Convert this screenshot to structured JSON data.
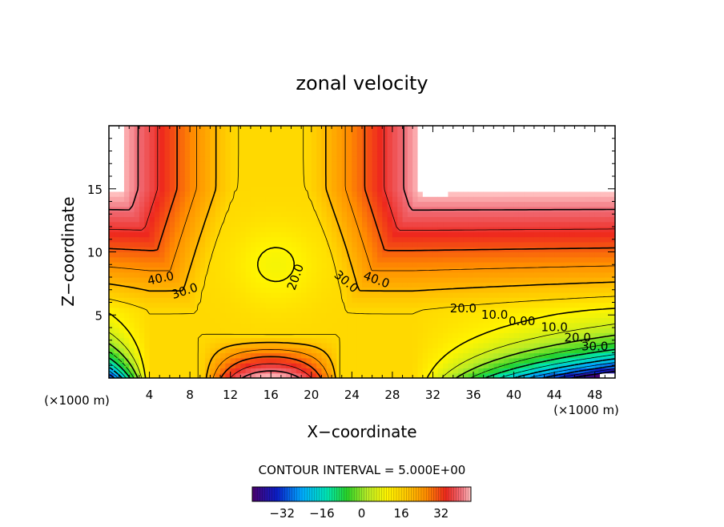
{
  "chart_data": {
    "type": "heatmap",
    "title": "zonal velocity",
    "xlabel": "X−coordinate",
    "ylabel": "Z−coordinate",
    "x_unit_left": "(×1000 m)",
    "x_unit_right": "(×1000 m)",
    "xlim": [
      0,
      50
    ],
    "ylim": [
      0,
      20
    ],
    "x_ticks": [
      4,
      8,
      12,
      16,
      20,
      24,
      28,
      32,
      36,
      40,
      44,
      48
    ],
    "y_ticks": [
      5,
      10,
      15
    ],
    "contour_labels": [
      {
        "text": "40.0",
        "x": 5.2,
        "y": 7.6,
        "rot": -12
      },
      {
        "text": "30.0",
        "x": 7.6,
        "y": 6.6,
        "rot": -18
      },
      {
        "text": "20.0",
        "x": 18.8,
        "y": 7.9,
        "rot": -70
      },
      {
        "text": "30.0",
        "x": 23.2,
        "y": 7.4,
        "rot": 40
      },
      {
        "text": "40.0",
        "x": 26.3,
        "y": 7.5,
        "rot": 20
      },
      {
        "text": "20.0",
        "x": 35.0,
        "y": 5.2,
        "rot": 0
      },
      {
        "text": "10.0",
        "x": 38.1,
        "y": 4.7,
        "rot": 0
      },
      {
        "text": "0.00",
        "x": 40.8,
        "y": 4.2,
        "rot": 0
      },
      {
        "text": "10.0",
        "x": 44.0,
        "y": 3.7,
        "rot": 0
      },
      {
        "text": "20.0",
        "x": 46.3,
        "y": 2.9,
        "rot": 0
      },
      {
        "text": "30.0",
        "x": 48.0,
        "y": 2.2,
        "rot": 0
      }
    ],
    "colorbar": {
      "label": "CONTOUR INTERVAL = 5.000E+00",
      "range": [
        -44,
        44
      ],
      "ticks": [
        -32,
        -16,
        0,
        16,
        32
      ]
    }
  }
}
